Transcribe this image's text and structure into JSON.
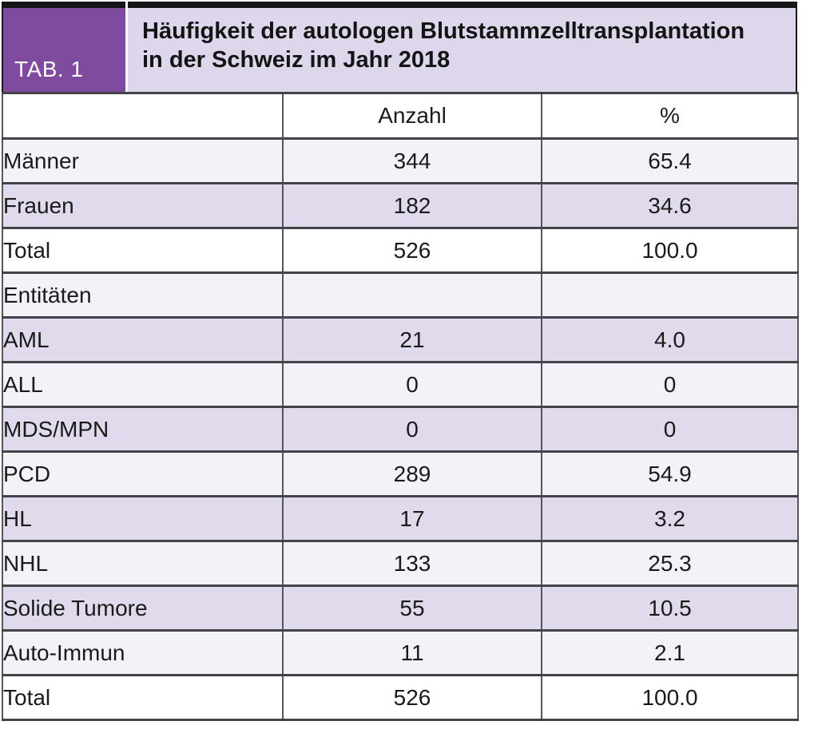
{
  "figure": {
    "tag_label": "TAB. 1",
    "title_line1": "Häufigkeit der autologen Blutstammzelltransplantation",
    "title_line2": "in der Schweiz im Jahr 2018"
  },
  "table": {
    "columns": {
      "label": "",
      "anzahl": "Anzahl",
      "pct": "%"
    },
    "rows": [
      {
        "label": "Männer",
        "anzahl": "344",
        "pct": "65.4"
      },
      {
        "label": "Frauen",
        "anzahl": "182",
        "pct": "34.6"
      },
      {
        "label": "Total",
        "anzahl": "526",
        "pct": "100.0"
      },
      {
        "label": "Entitäten",
        "anzahl": "",
        "pct": ""
      },
      {
        "label": "AML",
        "anzahl": "21",
        "pct": "4.0"
      },
      {
        "label": "ALL",
        "anzahl": "0",
        "pct": "0"
      },
      {
        "label": "MDS/MPN",
        "anzahl": "0",
        "pct": "0"
      },
      {
        "label": "PCD",
        "anzahl": "289",
        "pct": "54.9"
      },
      {
        "label": "HL",
        "anzahl": "17",
        "pct": "3.2"
      },
      {
        "label": "NHL",
        "anzahl": "133",
        "pct": "25.3"
      },
      {
        "label": "Solide Tumore",
        "anzahl": "55",
        "pct": "10.5"
      },
      {
        "label": "Auto-Immun",
        "anzahl": "11",
        "pct": "2.1"
      },
      {
        "label": "Total",
        "anzahl": "526",
        "pct": "100.0"
      }
    ]
  },
  "chart_data": {
    "type": "table",
    "title": "Häufigkeit der autologen Blutstammzelltransplantation in der Schweiz im Jahr 2018",
    "columns": [
      "",
      "Anzahl",
      "%"
    ],
    "rows": [
      [
        "Männer",
        344,
        65.4
      ],
      [
        "Frauen",
        182,
        34.6
      ],
      [
        "Total",
        526,
        100.0
      ],
      [
        "Entitäten",
        null,
        null
      ],
      [
        "AML",
        21,
        4.0
      ],
      [
        "ALL",
        0,
        0
      ],
      [
        "MDS/MPN",
        0,
        0
      ],
      [
        "PCD",
        289,
        54.9
      ],
      [
        "HL",
        17,
        3.2
      ],
      [
        "NHL",
        133,
        25.3
      ],
      [
        "Solide Tumore",
        55,
        10.5
      ],
      [
        "Auto-Immun",
        11,
        2.1
      ],
      [
        "Total",
        526,
        100.0
      ]
    ]
  },
  "colors": {
    "tab_box_purple": "#7f4b9e",
    "title_lavender": "#ded6ea",
    "row_light": "#f4f1f8",
    "row_dark": "#e1d9ec",
    "row_white": "#ffffff",
    "border_dark": "#43434a",
    "top_bar_black": "#161618"
  }
}
